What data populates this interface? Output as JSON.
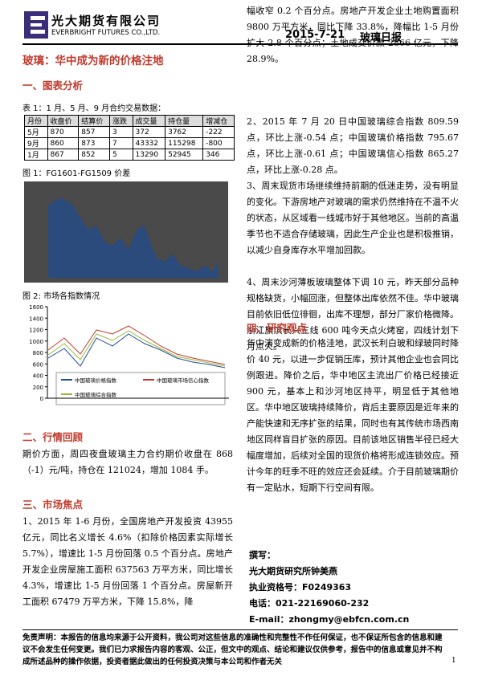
{
  "header": {
    "company": "光大期货有限公司",
    "company_en": "EVERBRIGHT FUTURES CO.,LTD.",
    "date": "2015-7-21",
    "report": "玻璃日报"
  },
  "title": "玻璃：华中成为新的价格注地",
  "section1": {
    "heading": "一、图表分析",
    "table_caption": "表 1：1 月、5 月、9 月合约交易数据：",
    "table": {
      "header": [
        "月份",
        "收盘价",
        "结算价",
        "涨跌",
        "成交量",
        "持仓量",
        "增减仓"
      ],
      "rows": [
        [
          "5月",
          "870",
          "857",
          "3",
          "372",
          "3762",
          "-222"
        ],
        [
          "9月",
          "860",
          "873",
          "7",
          "43332",
          "115298",
          "-800"
        ],
        [
          "1月",
          "867",
          "852",
          "5",
          "13290",
          "52945",
          "346"
        ]
      ]
    },
    "figure1_caption": "图 1：FG1601-FG1509 价差",
    "figure2_caption": "图 2: 市场各指数情况",
    "figure2": {
      "yticks": [
        1600,
        1400,
        1200,
        1000,
        800,
        600,
        400,
        200,
        0
      ],
      "legend": [
        "中国玻璃价格指数",
        "中国玻璃市场信心指数",
        "中国玻璃综合指数"
      ]
    }
  },
  "section2": {
    "heading": "二、行情回顾",
    "text": "期价方面，周四夜盘玻璃主力合约期价收盘在 868（-1）元/吨，持仓在 121024，增加 1084 手。"
  },
  "section3": {
    "heading": "三、市场焦点",
    "p1a": "1、2015 年 1-6 月份，全国房地产开发投资 43955 亿元，同比名义增长 4.6%（扣除价格因素实际增长 5.7%），增速比 1-5 月份回落 0.5 个百分点。房地产开发企业房屋施工面积 637563 万平方米，同比增长 4.3%，增速比 1-5 月份回落 1 个百分点。房屋新开工面积 67479 万平方米，下降 15.8%，降",
    "p1b": "幅收窄 0.2 个百分点。房地产开发企业土地购置面积 9800 万平方米，同比下降 33.8%，降幅比 1-5 月份扩大 2.8 个百分点；土地成交价款 2866 亿元，下降 28.9%。",
    "p2": "2、2015 年 7 月 20 日中国玻璃综合指数 809.59 点，环比上涨-0.54 点；中国玻璃价格指数 795.67 点，环比上涨-0.61 点；中国玻璃信心指数 865.27 点，环比上涨-0.28 点。",
    "p3": "3、周末现货市场继续维持前期的低迷走势，没有明显的变化。下游房地产对玻璃的需求仍然维持在不温不火的状态，从区域看一线城市好于其他地区。当前的高温季节也不适合存储玻璃，因此生产企业也是积极推销，以减少自身库存水平增加回款。",
    "p4": "4、周末沙河薄板玻璃整体下调 10 元，昨天部分品种规格缺货，小幅回涨，但整体出库依然不佳。华中玻璃目前依旧低位徘徊，出库不理想，部分厂家价格微降。浙江旗滨长兴三线 600 吨今天点火烤窑，四线计划下月点火。"
  },
  "section4": {
    "heading": "四、研究观点",
    "text": "华中演变成新的价格洼地，武汉长利白玻和绿玻同时降价 40 元，以进一步促销压库，预计其他企业也会同比例跟进。降价之后，华中地区主流出厂价格已经接近 900 元，基本上和沙河地区持平，明显低于其他地区。华中地区玻璃持续降价，背后主要原因是近年来的产能快速和无序扩张的结果，同时也有其传统市场西南地区同样盲目扩张的原因。目前该地区销售半径已经大幅度增加，后续对全国的现货价格将形成连锁效应。预计今年的旺季不旺的效应还会延续。介于目前玻璃期价有一定贴水，短期下行空间有限。"
  },
  "author": {
    "label": "撰写：",
    "name": "光大期货研究所钟美燕",
    "license": "执业资格号：F0249363",
    "phone": "电话：021-22169060-232",
    "email": "E-mail：zhongmy@ebfcn.com.cn"
  },
  "footer": {
    "disclaimer": "免责声明：本报告的信息均来源于公开资料，我公司对这些信息的准确性和完整性不作任何保证，也不保证所包含的信息和建议不会发生任何变更。我们已力求报告内容的客观、公正，但文中的观点、结论和建议仅供参考，报告中的信息或意见并不构成所述品种的操作依据，投资者据此做出的任何投资决策与本公司和作者无关",
    "page": "1"
  }
}
